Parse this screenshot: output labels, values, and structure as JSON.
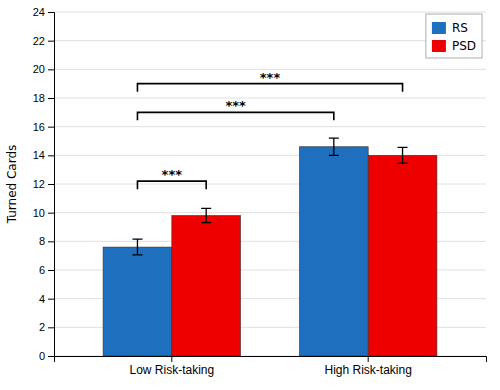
{
  "chart_data": {
    "type": "bar",
    "categories": [
      "Low Risk-taking",
      "High Risk-taking"
    ],
    "series": [
      {
        "name": "RS",
        "color": "#1F6FBF",
        "values": [
          7.6,
          14.6
        ],
        "errors": [
          0.55,
          0.6
        ]
      },
      {
        "name": "PSD",
        "color": "#EE0000",
        "values": [
          9.8,
          14.0
        ],
        "errors": [
          0.5,
          0.55
        ]
      }
    ],
    "ylabel": "Turned Cards",
    "ylim": [
      0,
      24
    ],
    "yticks": [
      0,
      2,
      4,
      6,
      8,
      10,
      12,
      14,
      16,
      18,
      20,
      22,
      24
    ],
    "grid": true,
    "legend": "upper right",
    "annotations": [
      {
        "text": "***",
        "y": 12.2,
        "from": [
          "Low Risk-taking",
          "RS"
        ],
        "to": [
          "Low Risk-taking",
          "PSD"
        ]
      },
      {
        "text": "***",
        "y": 17.0,
        "from": [
          "Low Risk-taking",
          "RS"
        ],
        "to": [
          "High Risk-taking",
          "RS"
        ]
      },
      {
        "text": "***",
        "y": 19.0,
        "from": [
          "Low Risk-taking",
          "RS"
        ],
        "to": [
          "High Risk-taking",
          "PSD"
        ]
      }
    ]
  }
}
